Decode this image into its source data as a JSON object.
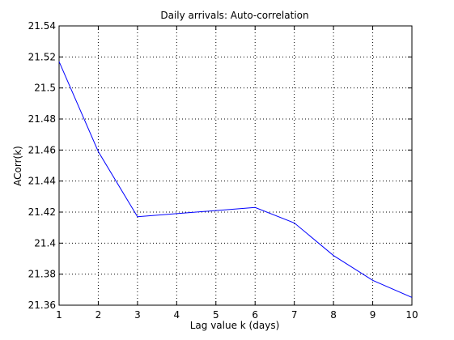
{
  "chart_data": {
    "type": "line",
    "title": "Daily arrivals: Auto-correlation",
    "xlabel": "Lag value k (days)",
    "ylabel": "ACorr(k)",
    "xlim": [
      1,
      10
    ],
    "ylim": [
      21.36,
      21.54
    ],
    "x_ticks": [
      "1",
      "2",
      "3",
      "4",
      "5",
      "6",
      "7",
      "8",
      "9",
      "10"
    ],
    "y_ticks": [
      "21.36",
      "21.38",
      "21.4",
      "21.42",
      "21.44",
      "21.46",
      "21.48",
      "21.5",
      "21.52",
      "21.54"
    ],
    "grid": true,
    "series": [
      {
        "color": "#0000ff",
        "x": [
          1,
          2,
          3,
          4,
          5,
          6,
          7,
          8,
          9,
          10
        ],
        "y": [
          21.517,
          21.459,
          21.417,
          21.419,
          21.421,
          21.423,
          21.413,
          21.392,
          21.376,
          21.365
        ]
      }
    ]
  }
}
